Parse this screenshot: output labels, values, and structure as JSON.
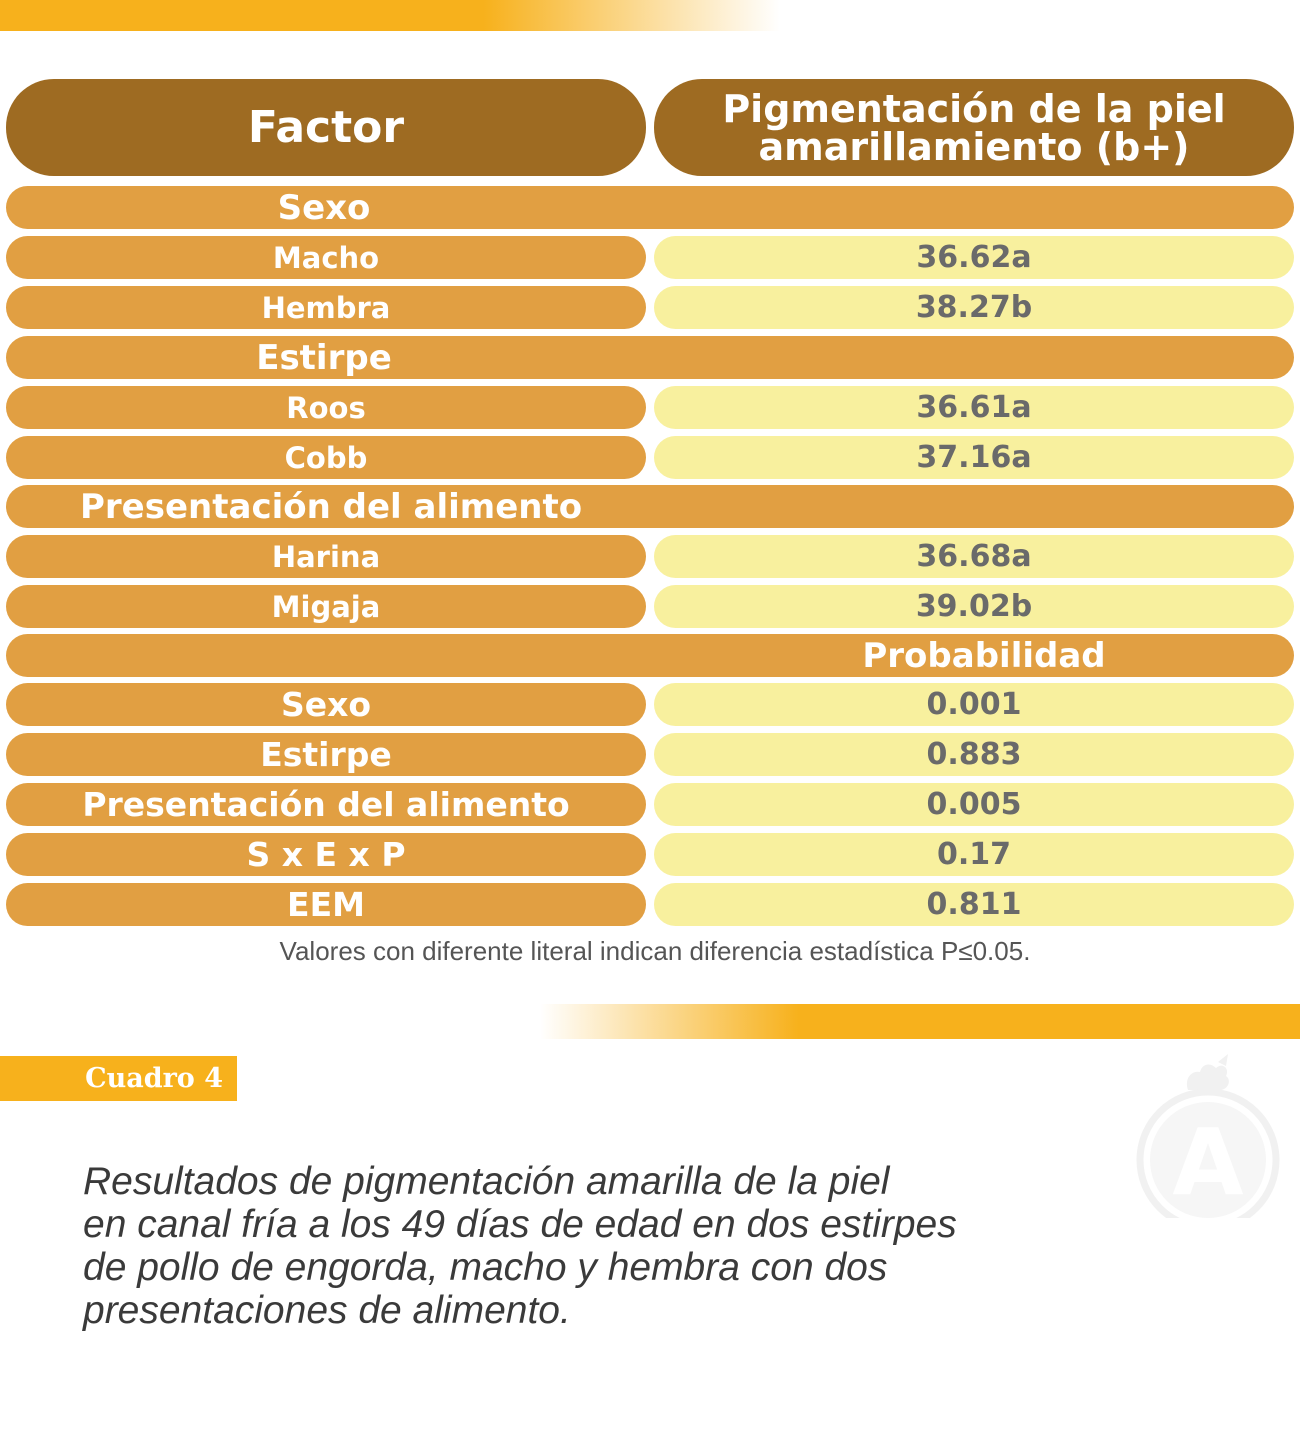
{
  "table": {
    "header": {
      "factor": "Factor",
      "pigment_line1": "Pigmentación de la piel",
      "pigment_line2": "amarillamiento (b+)"
    },
    "sections": [
      {
        "title": "Sexo",
        "rows": [
          {
            "label": "Macho",
            "value": "36.62a"
          },
          {
            "label": "Hembra",
            "value": "38.27b"
          }
        ]
      },
      {
        "title": "Estirpe",
        "rows": [
          {
            "label": "Roos",
            "value": "36.61a"
          },
          {
            "label": "Cobb",
            "value": "37.16a"
          }
        ]
      },
      {
        "title": "Presentación del alimento",
        "rows": [
          {
            "label": "Harina",
            "value": "36.68a"
          },
          {
            "label": "Migaja",
            "value": "39.02b"
          }
        ]
      }
    ],
    "probability": {
      "title": "Probabilidad",
      "rows": [
        {
          "label": "Sexo",
          "value": "0.001"
        },
        {
          "label": "Estirpe",
          "value": "0.883"
        },
        {
          "label": "Presentación del alimento",
          "value": "0.005"
        },
        {
          "label": "S x E x P",
          "value": "0.17"
        },
        {
          "label": "EEM",
          "value": "0.811"
        }
      ]
    }
  },
  "note": "Valores con diferente literal indican diferencia estadística P≤0.05.",
  "cuadro_label": "Cuadro 4",
  "caption_lines": [
    "Resultados de pigmentación amarilla de la piel",
    "en canal fría a los 49 días de edad en dos estirpes",
    "de pollo de engorda, macho y hembra con dos",
    "presentaciones de alimento."
  ],
  "watermark": {
    "icon": "logo-a-icon",
    "letter": "A"
  },
  "colors": {
    "header": "#9e6b22",
    "label": "#e19f42",
    "value": "#f8f09e",
    "band": "#f7b11c"
  }
}
